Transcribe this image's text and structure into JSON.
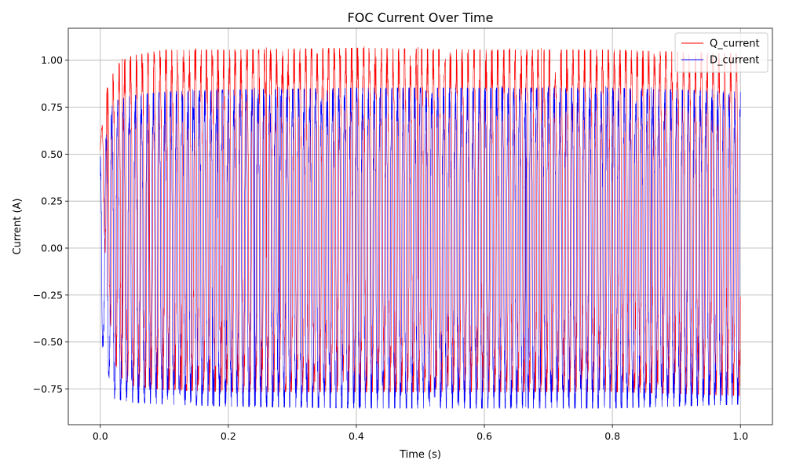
{
  "chart_data": {
    "type": "line",
    "title": "FOC Current Over Time",
    "xlabel": "Time (s)",
    "ylabel": "Current (A)",
    "xlim": [
      -0.05,
      1.05
    ],
    "ylim": [
      -0.94,
      1.17
    ],
    "xticks": [
      0.0,
      0.2,
      0.4,
      0.6,
      0.8,
      1.0
    ],
    "xtick_labels": [
      "0.0",
      "0.2",
      "0.4",
      "0.6",
      "0.8",
      "1.0"
    ],
    "yticks": [
      -0.75,
      -0.5,
      -0.25,
      0.0,
      0.25,
      0.5,
      0.75,
      1.0
    ],
    "ytick_labels": [
      "−0.75",
      "−0.50",
      "−0.25",
      "0.00",
      "0.25",
      "0.50",
      "0.75",
      "1.00"
    ],
    "grid": true,
    "legend_position": "top-right",
    "series": [
      {
        "name": "Q_current",
        "color": "#ff0000",
        "range": [
          -0.83,
          1.07
        ],
        "envelope": {
          "x": [
            0.0,
            0.005,
            0.01,
            0.02,
            0.03,
            0.05,
            0.1,
            0.2,
            0.4,
            0.6,
            0.8,
            1.0
          ],
          "max": [
            0.58,
            0.7,
            0.83,
            0.9,
            0.96,
            0.99,
            1.02,
            1.02,
            1.03,
            1.02,
            1.02,
            1.0
          ],
          "min": [
            0.45,
            0.2,
            -0.2,
            -0.55,
            -0.65,
            -0.7,
            -0.72,
            -0.73,
            -0.73,
            -0.73,
            -0.73,
            -0.75
          ]
        },
        "cycles_per_second": 110
      },
      {
        "name": "D_current",
        "color": "#0000ff",
        "range": [
          -0.85,
          0.85
        ],
        "envelope": {
          "x": [
            0.0,
            0.005,
            0.01,
            0.02,
            0.05,
            0.1,
            0.2,
            0.4,
            0.6,
            0.8,
            1.0
          ],
          "max": [
            0.47,
            0.45,
            0.6,
            0.75,
            0.78,
            0.8,
            0.81,
            0.82,
            0.82,
            0.82,
            0.8
          ],
          "min": [
            -0.53,
            -0.5,
            -0.6,
            -0.77,
            -0.79,
            -0.8,
            -0.81,
            -0.82,
            -0.82,
            -0.82,
            -0.8
          ]
        },
        "cycles_per_second": 110
      }
    ]
  }
}
